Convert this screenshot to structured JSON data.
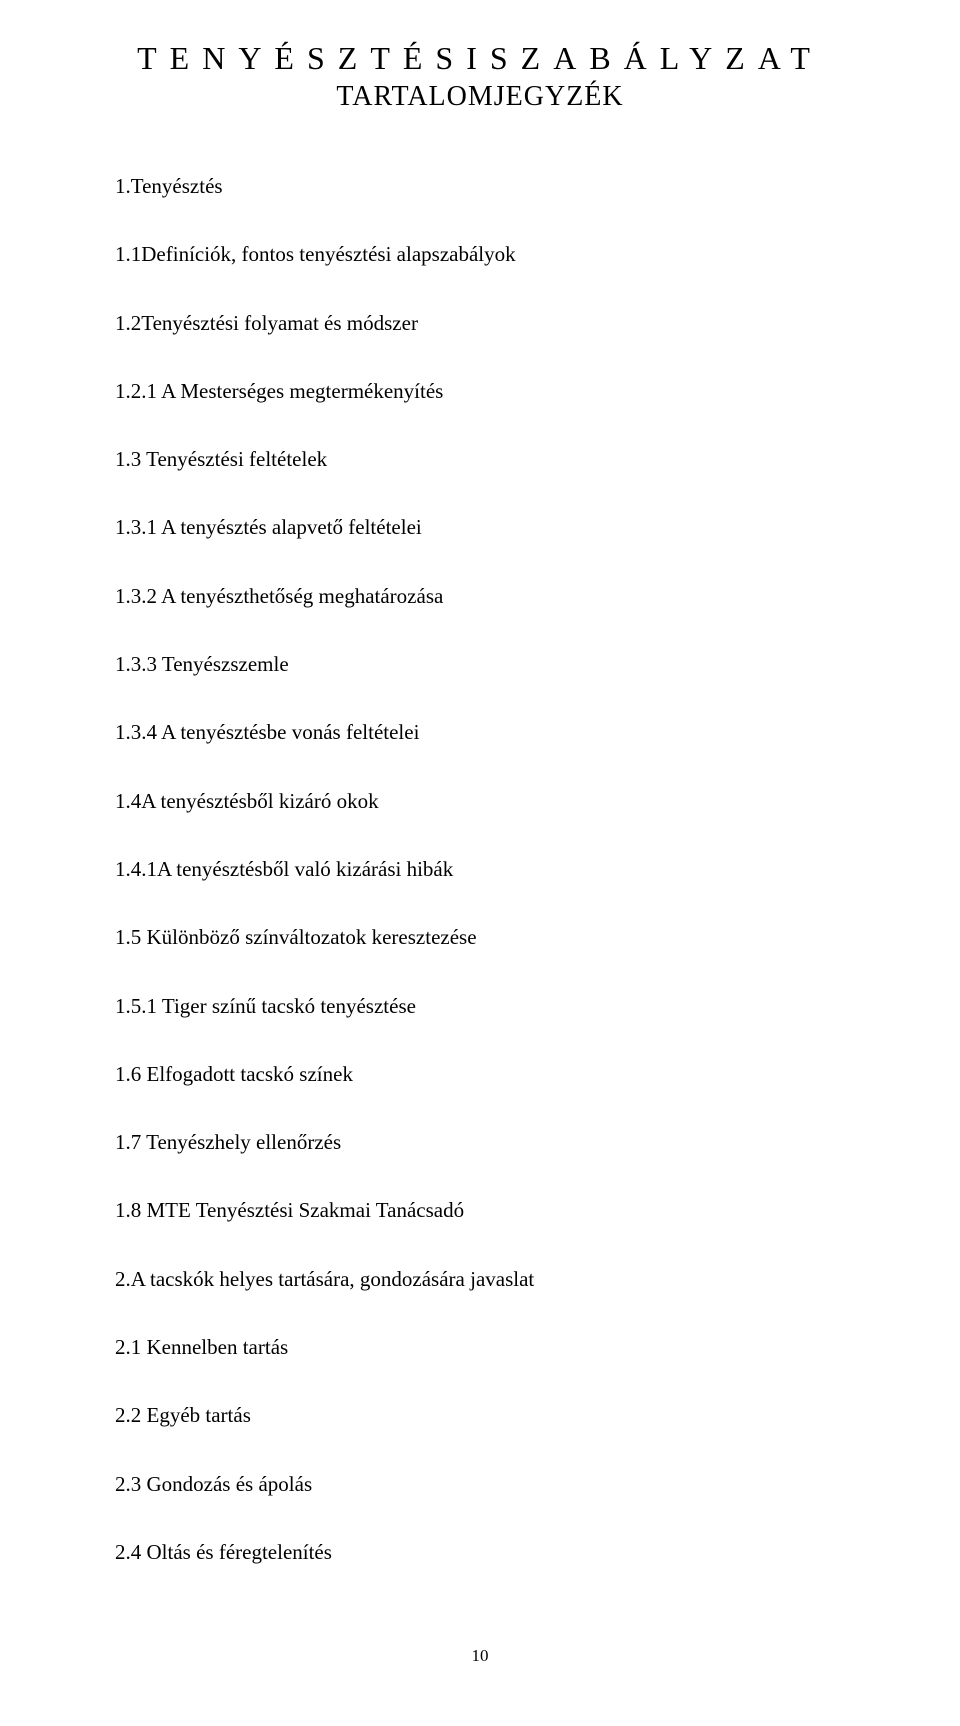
{
  "title_main": "TENYÉSZTÉSISZABÁLYZAT",
  "title_sub": "TARTALOMJEGYZÉK",
  "entries": [
    "1.Tenyésztés",
    "1.1Definíciók, fontos tenyésztési alapszabályok",
    "1.2Tenyésztési folyamat és módszer",
    "1.2.1 A Mesterséges megtermékenyítés",
    "1.3 Tenyésztési feltételek",
    "1.3.1 A tenyésztés alapvető feltételei",
    "1.3.2 A tenyészthetőség meghatározása",
    "1.3.3 Tenyészszemle",
    "1.3.4 A tenyésztésbe vonás feltételei",
    "1.4A tenyésztésből kizáró okok",
    "1.4.1A tenyésztésből való kizárási hibák",
    "1.5 Különböző színváltozatok keresztezése",
    "1.5.1 Tiger színű tacskó tenyésztése",
    "1.6 Elfogadott tacskó színek",
    "1.7 Tenyészhely ellenőrzés",
    "1.8 MTE Tenyésztési Szakmai Tanácsadó",
    "2.A tacskók helyes tartására, gondozására javaslat",
    "2.1 Kennelben tartás",
    "2.2 Egyéb tartás",
    "2.3 Gondozás és ápolás",
    "2.4 Oltás és féregtelenítés"
  ],
  "page_number": "10",
  "colors": {
    "background": "#ffffff",
    "text": "#000000"
  },
  "typography": {
    "font_family": "Times New Roman",
    "title_main_fontsize": 32,
    "title_sub_fontsize": 28,
    "entry_fontsize": 21,
    "page_number_fontsize": 17,
    "title_letter_spacing": 13
  }
}
